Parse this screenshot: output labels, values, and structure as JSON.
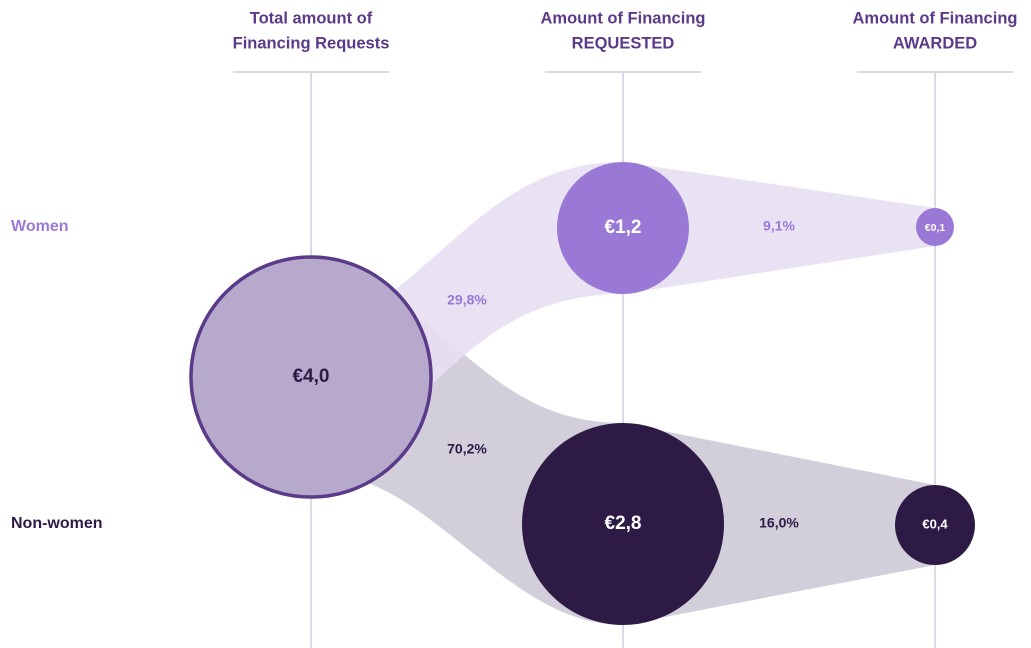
{
  "headers": [
    {
      "line1": "Total amount of",
      "line2": "Financing Requests"
    },
    {
      "line1": "Amount of Financing",
      "line2": "REQUESTED"
    },
    {
      "line1": "Amount of Financing",
      "line2": "AWARDED"
    }
  ],
  "rows": [
    "Women",
    "Non-women"
  ],
  "nodes": [
    {
      "label": "€4,0"
    },
    {
      "label": "€1,2"
    },
    {
      "label": "€2,8"
    },
    {
      "label": "€0,1"
    },
    {
      "label": "€0,4"
    }
  ],
  "flows": [
    {
      "label": "29,8%"
    },
    {
      "label": "70,2%"
    },
    {
      "label": "9,1%"
    },
    {
      "label": "16,0%"
    }
  ]
}
